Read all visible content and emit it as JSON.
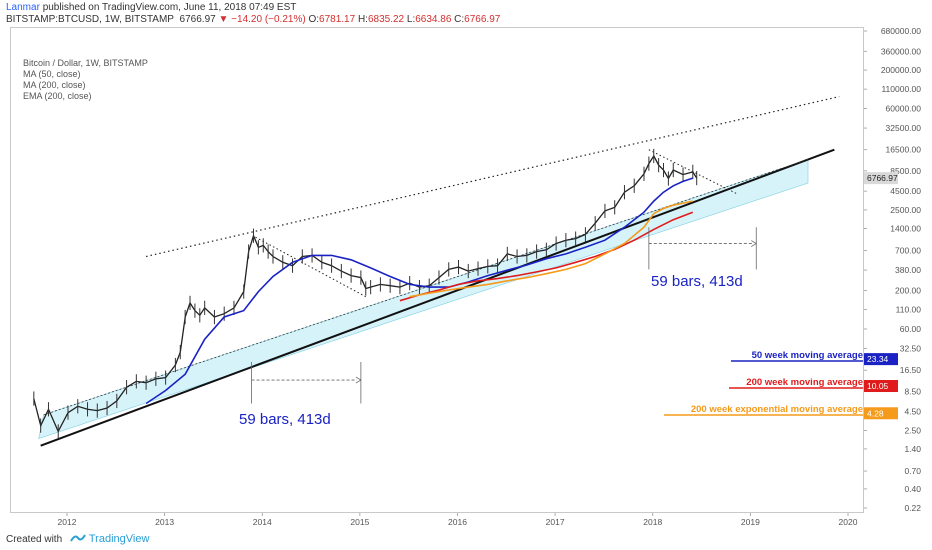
{
  "header": {
    "author": "Lanmar",
    "published": "published on TradingView.com, June 11, 2018 07:49 EST",
    "symbol": "BITSTAMP:BTCUSD, 1W, BITSTAMP",
    "last": "6766.97",
    "change_arrow": "▼",
    "change": "−14.20 (−0.21%)",
    "o_label": "O:",
    "o": "6781.17",
    "h_label": "H:",
    "h": "6835.22",
    "l_label": "L:",
    "l": "6634.86",
    "c_label": "C:",
    "c": "6766.97"
  },
  "indicators": {
    "title": "Bitcoin / Dollar, 1W, BITSTAMP",
    "ma50": "MA (50, close)",
    "ma200": "MA (200, close)",
    "ema200": "EMA (200, close)"
  },
  "footer": {
    "created_with": "Created with",
    "brand": "TradingView",
    "icon": "tradingview-logo-icon"
  },
  "colors": {
    "ma50": "#1a22c4",
    "ma200": "#e01b1b",
    "ema200": "#f59a1a",
    "channel_fill": "#d6f3fa",
    "annotation_text": "#1a22c4"
  },
  "annotations": {
    "bars1": "59 bars, 413d",
    "bars2": "59 bars, 413d",
    "ma50_label": "50 week moving average",
    "ma200_label": "200 week moving average",
    "ema200_label": "200 week exponential moving average"
  },
  "chart_data": {
    "type": "line",
    "title": "Bitcoin / Dollar, 1W, BITSTAMP",
    "y_scale": "log",
    "y_ticks": [
      "680000.00",
      "360000.00",
      "200000.00",
      "110000.00",
      "60000.00",
      "32500.00",
      "16500.00",
      "8500.00",
      "4500.00",
      "2500.00",
      "1400.00",
      "700.00",
      "380.00",
      "200.00",
      "110.00",
      "60.00",
      "32.50",
      "16.50",
      "8.50",
      "4.50",
      "2.50",
      "1.40",
      "0.70",
      "0.40",
      "0.22"
    ],
    "x_ticks": [
      "2012",
      "2013",
      "2014",
      "2015",
      "2016",
      "2017",
      "2018",
      "2019",
      "2020"
    ],
    "price_series": {
      "name": "BTCUSD",
      "x": [
        2011.65,
        2011.72,
        2011.8,
        2011.9,
        2012.0,
        2012.1,
        2012.2,
        2012.3,
        2012.4,
        2012.5,
        2012.6,
        2012.7,
        2012.8,
        2012.9,
        2013.0,
        2013.1,
        2013.15,
        2013.2,
        2013.25,
        2013.3,
        2013.35,
        2013.4,
        2013.5,
        2013.6,
        2013.7,
        2013.8,
        2013.85,
        2013.9,
        2013.95,
        2014.0,
        2014.05,
        2014.1,
        2014.2,
        2014.3,
        2014.4,
        2014.5,
        2014.6,
        2014.7,
        2014.8,
        2014.9,
        2015.0,
        2015.05,
        2015.1,
        2015.2,
        2015.3,
        2015.4,
        2015.5,
        2015.6,
        2015.7,
        2015.8,
        2015.9,
        2016.0,
        2016.1,
        2016.2,
        2016.3,
        2016.4,
        2016.5,
        2016.6,
        2016.7,
        2016.8,
        2016.9,
        2017.0,
        2017.1,
        2017.2,
        2017.3,
        2017.4,
        2017.5,
        2017.6,
        2017.7,
        2017.8,
        2017.9,
        2017.95,
        2018.0,
        2018.05,
        2018.1,
        2018.15,
        2018.2,
        2018.3,
        2018.4,
        2018.44
      ],
      "y": [
        7,
        3,
        5,
        2.5,
        4.5,
        5.5,
        5,
        4.8,
        5.2,
        6.5,
        10,
        12,
        11.5,
        13,
        13.5,
        20,
        30,
        90,
        140,
        110,
        95,
        120,
        90,
        100,
        120,
        200,
        700,
        1150,
        800,
        850,
        700,
        600,
        500,
        450,
        600,
        620,
        500,
        450,
        380,
        330,
        310,
        220,
        230,
        250,
        240,
        230,
        260,
        230,
        240,
        310,
        400,
        430,
        380,
        410,
        440,
        450,
        650,
        600,
        620,
        700,
        740,
        900,
        1000,
        1050,
        1200,
        1700,
        2500,
        2800,
        4500,
        5500,
        8000,
        11000,
        14000,
        10500,
        9000,
        6900,
        9000,
        7800,
        8500,
        7000
      ]
    },
    "series": [
      {
        "name": "MA (50, close)",
        "color": "#1a22c4",
        "x": [
          2012.8,
          2013.0,
          2013.2,
          2013.4,
          2013.6,
          2013.8,
          2013.95,
          2014.1,
          2014.3,
          2014.5,
          2014.7,
          2014.9,
          2015.1,
          2015.3,
          2015.5,
          2015.7,
          2015.9,
          2016.1,
          2016.3,
          2016.5,
          2016.7,
          2016.9,
          2017.1,
          2017.3,
          2017.5,
          2017.7,
          2017.9,
          2018.0,
          2018.1,
          2018.2,
          2018.3,
          2018.4
        ],
        "y": [
          6,
          9,
          15,
          45,
          90,
          110,
          200,
          320,
          500,
          620,
          620,
          540,
          420,
          320,
          250,
          230,
          230,
          270,
          330,
          390,
          460,
          560,
          650,
          800,
          1000,
          1500,
          2400,
          3400,
          4500,
          5500,
          6300,
          7000
        ]
      },
      {
        "name": "MA (200, close)",
        "color": "#e01b1b",
        "x": [
          2015.4,
          2015.6,
          2015.8,
          2016.0,
          2016.2,
          2016.4,
          2016.6,
          2016.8,
          2017.0,
          2017.2,
          2017.4,
          2017.6,
          2017.8,
          2018.0,
          2018.2,
          2018.4
        ],
        "y": [
          150,
          180,
          210,
          250,
          280,
          300,
          330,
          370,
          420,
          500,
          600,
          750,
          1000,
          1400,
          1900,
          2400
        ]
      },
      {
        "name": "EMA (200, close)",
        "color": "#f59a1a",
        "x": [
          2015.5,
          2015.7,
          2015.9,
          2016.1,
          2016.3,
          2016.5,
          2016.7,
          2016.9,
          2017.1,
          2017.3,
          2017.5,
          2017.7,
          2017.9,
          2018.0,
          2018.1,
          2018.2,
          2018.4
        ],
        "y": [
          170,
          190,
          210,
          230,
          250,
          280,
          310,
          350,
          400,
          480,
          650,
          900,
          1500,
          2300,
          2700,
          3000,
          3400
        ]
      }
    ],
    "current_values": {
      "last": "6766.97",
      "ma50": "23.34",
      "ma200": "10.05",
      "ema200": "4.28"
    }
  }
}
